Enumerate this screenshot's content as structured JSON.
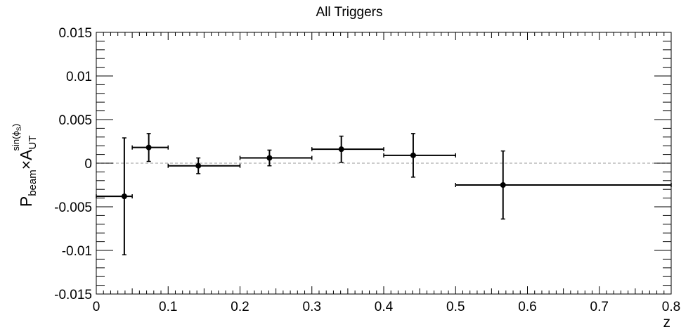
{
  "chart_data": {
    "type": "scatter",
    "title": "All Triggers",
    "xlabel": "z",
    "ylabel": {
      "base": "P",
      "base_sub": "beam",
      "times": "×",
      "main": "A",
      "main_sub": "UT",
      "main_sup": "sin(ϕ",
      "main_sup_sub": "S",
      "main_sup_close": ")"
    },
    "xlim": [
      0,
      0.8
    ],
    "ylim": [
      -0.015,
      0.015
    ],
    "x_ticks": [
      "0",
      "0.1",
      "0.2",
      "0.3",
      "0.4",
      "0.5",
      "0.6",
      "0.7",
      "0.8"
    ],
    "y_ticks": [
      "-0.015",
      "-0.01",
      "-0.005",
      "0",
      "0.005",
      "0.01",
      "0.015"
    ],
    "reference_line": {
      "y": 0,
      "style": "dashed",
      "color": "#bbbbbb"
    },
    "marker_color": "#000000",
    "series": [
      {
        "points": [
          {
            "x": 0.039,
            "y": -0.0038,
            "xerr_low": 0.039,
            "xerr_high": 0.011,
            "yerr": 0.0067
          },
          {
            "x": 0.073,
            "y": 0.0018,
            "xerr_low": 0.023,
            "xerr_high": 0.027,
            "yerr": 0.0016
          },
          {
            "x": 0.142,
            "y": -0.0003,
            "xerr_low": 0.042,
            "xerr_high": 0.058,
            "yerr": 0.0009
          },
          {
            "x": 0.241,
            "y": 0.0006,
            "xerr_low": 0.041,
            "xerr_high": 0.059,
            "yerr": 0.0009
          },
          {
            "x": 0.341,
            "y": 0.0016,
            "xerr_low": 0.041,
            "xerr_high": 0.059,
            "yerr": 0.0015
          },
          {
            "x": 0.441,
            "y": 0.0009,
            "xerr_low": 0.041,
            "xerr_high": 0.059,
            "yerr": 0.0025
          },
          {
            "x": 0.566,
            "y": -0.0025,
            "xerr_low": 0.066,
            "xerr_high": 0.234,
            "yerr": 0.0039
          }
        ]
      }
    ]
  }
}
